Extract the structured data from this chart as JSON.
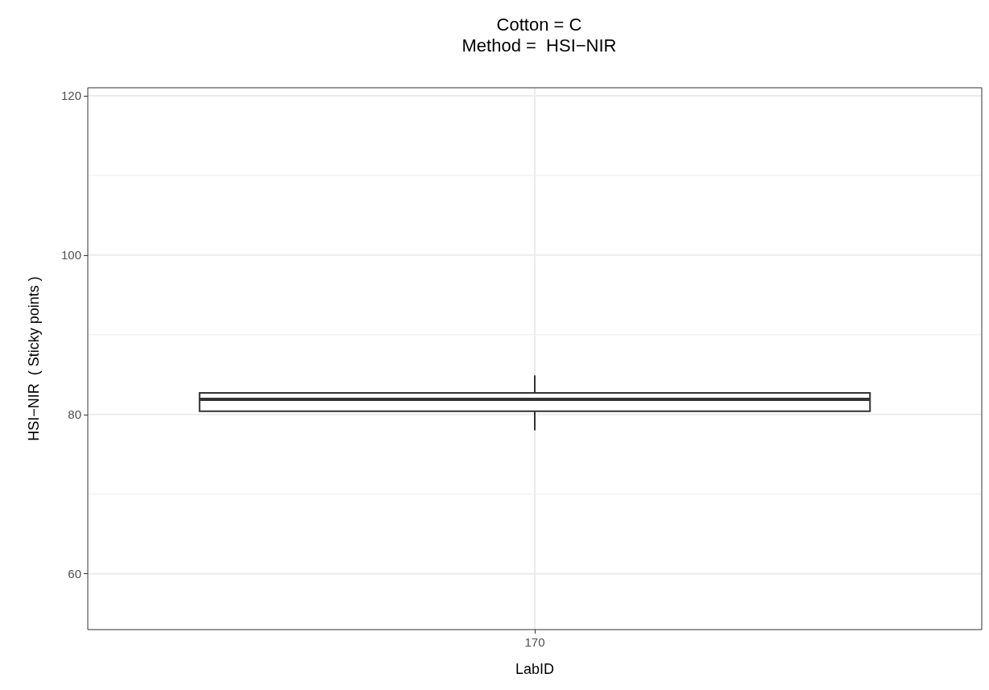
{
  "chart_data": {
    "type": "box",
    "title": "Cotton = C\nMethod =  HSI−NIR",
    "xlabel": "LabID",
    "ylabel": "HSI−NIR  ( Sticky points )",
    "categories": [
      "170"
    ],
    "boxes": [
      {
        "low": 78,
        "q1": 80.4,
        "median": 81.9,
        "q3": 82.7,
        "high": 84.9
      }
    ],
    "color": "#333333",
    "ylim": [
      53,
      121
    ],
    "yticks": [
      60,
      {
        "value": 70,
        "label": null
      },
      80,
      {
        "value": 90,
        "label": null
      },
      100,
      {
        "value": 110,
        "label": null
      },
      120
    ],
    "grid": true
  }
}
